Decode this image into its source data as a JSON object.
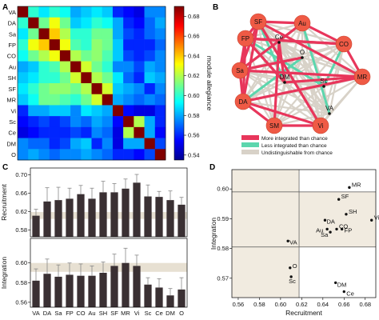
{
  "panels": {
    "a": "A",
    "b": "B",
    "c": "C",
    "d": "D"
  },
  "chart_data": [
    {
      "type": "heatmap",
      "rows": [
        "VA",
        "DA",
        "Sa",
        "FP",
        "CO",
        "Au",
        "SH",
        "SF",
        "MR",
        "Vi",
        "Sc",
        "Ce",
        "DM",
        "O"
      ],
      "colorbar": {
        "label": "module allegiance",
        "range": [
          0.535,
          0.69
        ],
        "ticks": [
          "0.54",
          "0.56",
          "0.58",
          "0.60",
          "0.62",
          "0.64",
          "0.66",
          "0.68"
        ]
      },
      "values": [
        [
          0.69,
          0.6,
          0.59,
          0.6,
          0.595,
          0.58,
          0.585,
          0.59,
          0.585,
          0.56,
          0.555,
          0.55,
          0.575,
          0.575
        ],
        [
          0.6,
          0.69,
          0.61,
          0.63,
          0.61,
          0.585,
          0.59,
          0.6,
          0.595,
          0.58,
          0.56,
          0.555,
          0.57,
          0.58
        ],
        [
          0.59,
          0.61,
          0.69,
          0.64,
          0.62,
          0.6,
          0.6,
          0.61,
          0.61,
          0.58,
          0.565,
          0.56,
          0.57,
          0.575
        ],
        [
          0.6,
          0.63,
          0.64,
          0.69,
          0.63,
          0.605,
          0.6,
          0.615,
          0.61,
          0.585,
          0.56,
          0.56,
          0.56,
          0.57
        ],
        [
          0.595,
          0.61,
          0.62,
          0.63,
          0.69,
          0.62,
          0.61,
          0.615,
          0.605,
          0.585,
          0.565,
          0.56,
          0.565,
          0.575
        ],
        [
          0.58,
          0.585,
          0.6,
          0.605,
          0.62,
          0.69,
          0.625,
          0.61,
          0.6,
          0.575,
          0.575,
          0.565,
          0.58,
          0.575
        ],
        [
          0.585,
          0.59,
          0.6,
          0.6,
          0.61,
          0.625,
          0.69,
          0.62,
          0.61,
          0.59,
          0.57,
          0.56,
          0.585,
          0.58
        ],
        [
          0.59,
          0.6,
          0.61,
          0.615,
          0.615,
          0.61,
          0.62,
          0.69,
          0.625,
          0.585,
          0.58,
          0.575,
          0.56,
          0.575
        ],
        [
          0.585,
          0.595,
          0.61,
          0.61,
          0.605,
          0.6,
          0.61,
          0.625,
          0.69,
          0.58,
          0.575,
          0.57,
          0.575,
          0.57
        ],
        [
          0.56,
          0.58,
          0.58,
          0.585,
          0.585,
          0.575,
          0.59,
          0.585,
          0.58,
          0.69,
          0.555,
          0.55,
          0.55,
          0.56
        ],
        [
          0.555,
          0.56,
          0.565,
          0.56,
          0.565,
          0.575,
          0.57,
          0.58,
          0.575,
          0.555,
          0.69,
          0.62,
          0.58,
          0.56
        ],
        [
          0.55,
          0.555,
          0.56,
          0.56,
          0.56,
          0.565,
          0.56,
          0.575,
          0.57,
          0.55,
          0.62,
          0.69,
          0.58,
          0.555
        ],
        [
          0.575,
          0.57,
          0.57,
          0.56,
          0.565,
          0.58,
          0.585,
          0.56,
          0.575,
          0.55,
          0.58,
          0.58,
          0.69,
          0.565
        ],
        [
          0.575,
          0.58,
          0.575,
          0.57,
          0.575,
          0.575,
          0.58,
          0.575,
          0.57,
          0.56,
          0.56,
          0.555,
          0.565,
          0.69
        ]
      ]
    },
    {
      "type": "network",
      "nodes": [
        "SF",
        "Au",
        "CO",
        "MR",
        "Vi",
        "SM",
        "DA",
        "Sa",
        "FP",
        "Ce",
        "O",
        "DM",
        "Sc",
        "VA"
      ],
      "legend": [
        "More integrated than chance",
        "Less integrated than chance",
        "Undistinguishable from chance"
      ],
      "colors": {
        "more": "#e8365b",
        "less": "#5cd6ad",
        "chance": "#d8d2c8",
        "node": "#ef5a45"
      },
      "edges_more": [
        [
          "SF",
          "Au"
        ],
        [
          "SF",
          "FP"
        ],
        [
          "SF",
          "DA"
        ],
        [
          "SF",
          "Sa"
        ],
        [
          "SF",
          "MR"
        ],
        [
          "Au",
          "CO"
        ],
        [
          "Au",
          "Sa"
        ],
        [
          "CO",
          "MR"
        ],
        [
          "CO",
          "FP"
        ],
        [
          "MR",
          "Sa"
        ],
        [
          "MR",
          "DM"
        ],
        [
          "FP",
          "DA"
        ],
        [
          "FP",
          "Sa"
        ],
        [
          "FP",
          "DM"
        ],
        [
          "Sa",
          "DA"
        ],
        [
          "DA",
          "Vi"
        ],
        [
          "DA",
          "SM"
        ],
        [
          "DA",
          "MR"
        ],
        [
          "SM",
          "Vi"
        ],
        [
          "Ce",
          "DM"
        ],
        [
          "Ce",
          "SM"
        ],
        [
          "O",
          "Sa"
        ],
        [
          "SF",
          "Vi"
        ],
        [
          "FP",
          "CO"
        ]
      ],
      "edges_less": [
        [
          "SF",
          "DM"
        ],
        [
          "Au",
          "VA"
        ],
        [
          "CO",
          "Sc"
        ],
        [
          "FP",
          "Sc"
        ],
        [
          "DA",
          "O"
        ]
      ]
    },
    {
      "type": "bar",
      "categories": [
        "VA",
        "DA",
        "Sa",
        "FP",
        "CO",
        "Au",
        "SH",
        "SF",
        "MR",
        "Vi",
        "Sc",
        "Ce",
        "DM",
        "O"
      ],
      "series": [
        {
          "name": "Recruitment",
          "values": [
            0.611,
            0.642,
            0.645,
            0.648,
            0.658,
            0.648,
            0.662,
            0.662,
            0.67,
            0.683,
            0.653,
            0.652,
            0.645,
            0.635
          ],
          "errors": [
            0.014,
            0.03,
            0.028,
            0.023,
            0.019,
            0.023,
            0.024,
            0.019,
            0.021,
            0.018,
            0.025,
            0.012,
            0.02,
            0.016
          ],
          "ylabel": "Recruitment",
          "ylim": [
            0.565,
            0.715
          ],
          "yticks": [
            "0.58",
            "0.62",
            "0.66",
            "0.70"
          ],
          "band": [
            0.604,
            0.619
          ]
        },
        {
          "name": "Integration",
          "values": [
            0.582,
            0.589,
            0.586,
            0.588,
            0.587,
            0.587,
            0.59,
            0.597,
            0.6,
            0.597,
            0.578,
            0.575,
            0.567,
            0.573
          ],
          "errors": [
            0.012,
            0.015,
            0.012,
            0.012,
            0.012,
            0.01,
            0.011,
            0.012,
            0.015,
            0.011,
            0.007,
            0.009,
            0.007,
            0.012
          ],
          "ylabel": "Integration",
          "ylim": [
            0.555,
            0.625
          ],
          "yticks": [
            "0.56",
            "0.58",
            "0.60"
          ],
          "band": [
            0.591,
            0.6
          ]
        }
      ]
    },
    {
      "type": "scatter",
      "xlabel": "Recruitment",
      "ylabel": "Integration",
      "xlim": [
        0.554,
        0.69
      ],
      "ylim": [
        0.5635,
        0.6065
      ],
      "xticks": [
        "0.56",
        "0.58",
        "0.60",
        "0.62",
        "0.64",
        "0.66",
        "0.68"
      ],
      "yticks": [
        "0.57",
        "0.58",
        "0.59",
        "0.60"
      ],
      "shaded_x": [
        0.554,
        0.6175
      ],
      "shaded_y": [
        0.5805,
        0.599
      ],
      "points": [
        {
          "label": "MR",
          "x": 0.665,
          "y": 0.6005
        },
        {
          "label": "SF",
          "x": 0.655,
          "y": 0.5965
        },
        {
          "label": "SH",
          "x": 0.662,
          "y": 0.5915
        },
        {
          "label": "DA",
          "x": 0.642,
          "y": 0.5895
        },
        {
          "label": "Vi",
          "x": 0.686,
          "y": 0.5895
        },
        {
          "label": "Au",
          "x": 0.644,
          "y": 0.5865
        },
        {
          "label": "CO",
          "x": 0.653,
          "y": 0.5865
        },
        {
          "label": "FP",
          "x": 0.658,
          "y": 0.5865
        },
        {
          "label": "Sa",
          "x": 0.647,
          "y": 0.5855
        },
        {
          "label": "VA",
          "x": 0.607,
          "y": 0.5825
        },
        {
          "label": "O",
          "x": 0.609,
          "y": 0.5735
        },
        {
          "label": "Sc",
          "x": 0.61,
          "y": 0.5705
        },
        {
          "label": "DM",
          "x": 0.652,
          "y": 0.5685
        },
        {
          "label": "Ce",
          "x": 0.66,
          "y": 0.5655
        }
      ]
    }
  ]
}
